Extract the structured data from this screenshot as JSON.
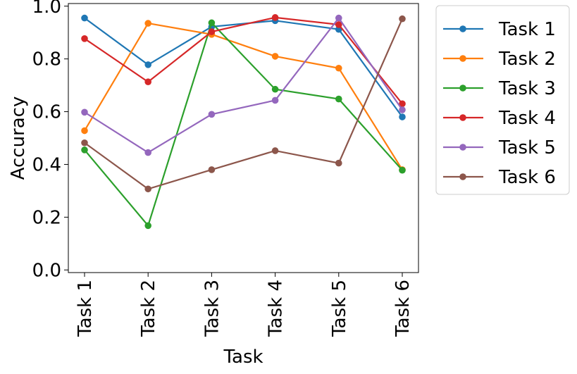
{
  "chart_data": {
    "type": "line",
    "title": "",
    "xlabel": "Task",
    "ylabel": "Accuracy",
    "categories": [
      "Task 1",
      "Task 2",
      "Task 3",
      "Task 4",
      "Task 5",
      "Task 6"
    ],
    "ylim": [
      -0.01,
      1.01
    ],
    "yticks": [
      0.0,
      0.2,
      0.4,
      0.6,
      0.8,
      1.0
    ],
    "ytick_labels": [
      "0.0",
      "0.2",
      "0.4",
      "0.6",
      "0.8",
      "1.0"
    ],
    "grid": false,
    "legend_position": "outside-top-right",
    "series": [
      {
        "name": "Task 1",
        "color": "#1f77b4",
        "values": [
          0.955,
          0.778,
          0.922,
          0.945,
          0.912,
          0.58
        ]
      },
      {
        "name": "Task 2",
        "color": "#ff7f0e",
        "values": [
          0.528,
          0.935,
          0.893,
          0.81,
          0.765,
          0.38
        ]
      },
      {
        "name": "Task 3",
        "color": "#2ca02c",
        "values": [
          0.455,
          0.168,
          0.937,
          0.685,
          0.648,
          0.378
        ]
      },
      {
        "name": "Task 4",
        "color": "#d62728",
        "values": [
          0.877,
          0.713,
          0.903,
          0.957,
          0.93,
          0.63
        ]
      },
      {
        "name": "Task 5",
        "color": "#9467bd",
        "values": [
          0.598,
          0.445,
          0.59,
          0.643,
          0.955,
          0.607
        ]
      },
      {
        "name": "Task 6",
        "color": "#8c564b",
        "values": [
          0.482,
          0.307,
          0.38,
          0.452,
          0.405,
          0.952
        ]
      }
    ]
  }
}
